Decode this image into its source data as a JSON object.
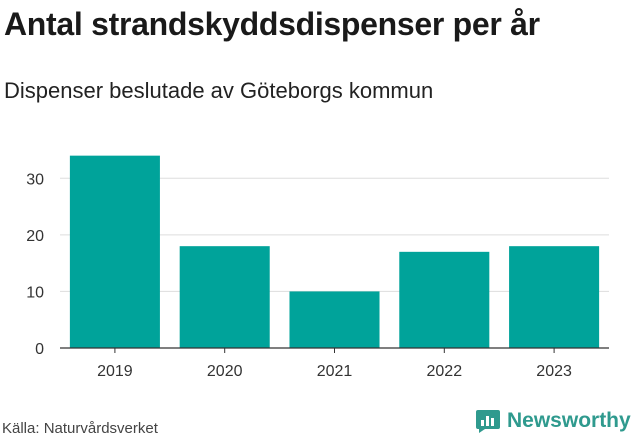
{
  "header": {
    "title": "Antal strandskyddsdispenser per år",
    "subtitle": "Dispenser beslutade av Göteborgs kommun"
  },
  "footer": {
    "source": "Källa: Naturvårdsverket",
    "brand": "Newsworthy"
  },
  "colors": {
    "bar": "#00a39a",
    "grid": "#dddddd",
    "axis": "#333333",
    "brand": "#2f9a8e"
  },
  "chart_data": {
    "type": "bar",
    "title": "Antal strandskyddsdispenser per år",
    "subtitle": "Dispenser beslutade av Göteborgs kommun",
    "xlabel": "",
    "ylabel": "",
    "categories": [
      "2019",
      "2020",
      "2021",
      "2022",
      "2023"
    ],
    "values": [
      34,
      18,
      10,
      17,
      18
    ],
    "ylim": [
      0,
      35
    ],
    "yticks": [
      0,
      10,
      20,
      30
    ],
    "grid": true
  }
}
